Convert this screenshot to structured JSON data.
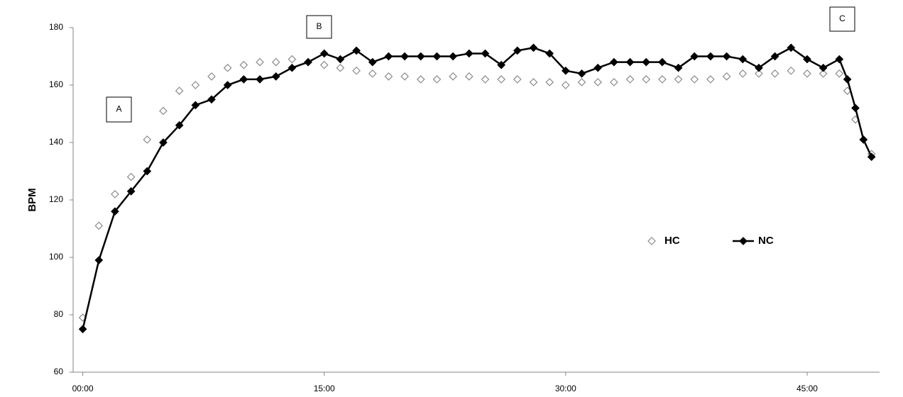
{
  "chart_data": {
    "type": "line",
    "y_label": "BPM",
    "annotations": [
      "A",
      "B",
      "C"
    ],
    "x": [
      0,
      1,
      2,
      3,
      4,
      5,
      6,
      7,
      8,
      9,
      10,
      11,
      12,
      13,
      14,
      15,
      16,
      17,
      18,
      19,
      20,
      21,
      22,
      23,
      24,
      25,
      26,
      27,
      28,
      29,
      30,
      31,
      32,
      33,
      34,
      35,
      36,
      37,
      38,
      39,
      40,
      41,
      42,
      43,
      44,
      45,
      46,
      47,
      47.5,
      48,
      48.5,
      49
    ],
    "series": [
      {
        "name": "HC",
        "color": "#8c8c8c",
        "marker": "open-diamond",
        "line": false,
        "values": [
          79,
          111,
          122,
          128,
          141,
          151,
          158,
          160,
          163,
          166,
          167,
          168,
          168,
          169,
          168,
          167,
          166,
          165,
          164,
          163,
          163,
          162,
          162,
          163,
          163,
          162,
          162,
          162,
          161,
          161,
          160,
          161,
          161,
          161,
          162,
          162,
          162,
          162,
          162,
          162,
          163,
          164,
          164,
          164,
          165,
          164,
          164,
          164,
          158,
          148,
          141,
          136
        ]
      },
      {
        "name": "NC",
        "color": "#000000",
        "marker": "filled-diamond",
        "line": true,
        "values": [
          75,
          99,
          116,
          123,
          130,
          140,
          146,
          153,
          155,
          160,
          162,
          162,
          163,
          166,
          168,
          171,
          169,
          172,
          168,
          170,
          170,
          170,
          170,
          170,
          171,
          171,
          167,
          172,
          173,
          171,
          165,
          164,
          166,
          168,
          168,
          168,
          168,
          166,
          170,
          170,
          170,
          169,
          166,
          170,
          173,
          169,
          166,
          169,
          162,
          152,
          141,
          135
        ]
      }
    ],
    "xlim": [
      -0.6,
      49.5
    ],
    "xticks": [
      {
        "value": 0,
        "label": "00:00"
      },
      {
        "value": 15,
        "label": "15:00"
      },
      {
        "value": 30,
        "label": "30:00"
      },
      {
        "value": 45,
        "label": "45:00"
      }
    ],
    "ylim": [
      60,
      180
    ],
    "yticks": [
      60,
      80,
      100,
      120,
      140,
      160,
      180
    ],
    "grid": false
  }
}
